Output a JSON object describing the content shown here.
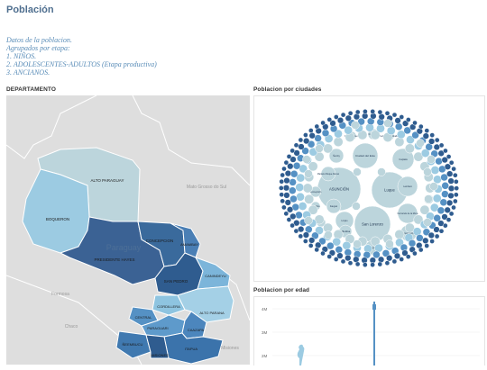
{
  "page": {
    "title": "Población"
  },
  "description": {
    "lines": [
      "Datos de la poblacion.",
      "Agrupados por etapa:",
      "1. NIÑOS.",
      "2. ADOLESCENTES-ADULTOS (Etapa productiva)",
      "3. ANCIANOS."
    ]
  },
  "map_panel": {
    "header": "DEPARTAMENTO",
    "country_label": "Paraguay",
    "neighbor_labels": [
      "Mato Grosso do Sul",
      "Formosa",
      "Chaco",
      "Misiones"
    ],
    "departments": [
      {
        "name": "ALTO PARAGUAY"
      },
      {
        "name": "BOQUERON"
      },
      {
        "name": "PRESIDENTE HAYES"
      },
      {
        "name": "CONCEPCION"
      },
      {
        "name": "AMAMBAY"
      },
      {
        "name": "SAN PEDRO"
      },
      {
        "name": "CANINDEYU"
      },
      {
        "name": "CORDILLERA"
      },
      {
        "name": "CENTRAL"
      },
      {
        "name": "PARAGUARI"
      },
      {
        "name": "CAAZAPA"
      },
      {
        "name": "ALTO PARANA"
      },
      {
        "name": "ITAPUA"
      },
      {
        "name": "ÑEEMBUCU"
      },
      {
        "name": "MISIONES"
      }
    ]
  },
  "bubble_panel": {
    "header": "Poblacion por ciudades",
    "cities": [
      "ASUNCIÓN",
      "Luque",
      "San Lorenzo",
      "Ciudad del Este",
      "Capiatá",
      "Lambaré",
      "Fernando de la Mora",
      "Limpio",
      "Ñemby",
      "Encarnación",
      "Mariano Roque Alonso",
      "Itauguá",
      "Villa Elisa",
      "Areguá",
      "Caaguazú",
      "Coronel Oviedo",
      "Pedro Juan Caballero",
      "Concepción",
      "Villarrica",
      "Itá"
    ]
  },
  "age_panel": {
    "header": "Poblacion por edad",
    "y_ticks": [
      "4M",
      "3M",
      "2M"
    ]
  },
  "colors": {
    "title": "#4f6f8f",
    "description": "#5a8db8",
    "dark": "#2f5c8f",
    "mid": "#5591c4",
    "light": "#9ccbe2",
    "pale": "#bcd5dc"
  }
}
